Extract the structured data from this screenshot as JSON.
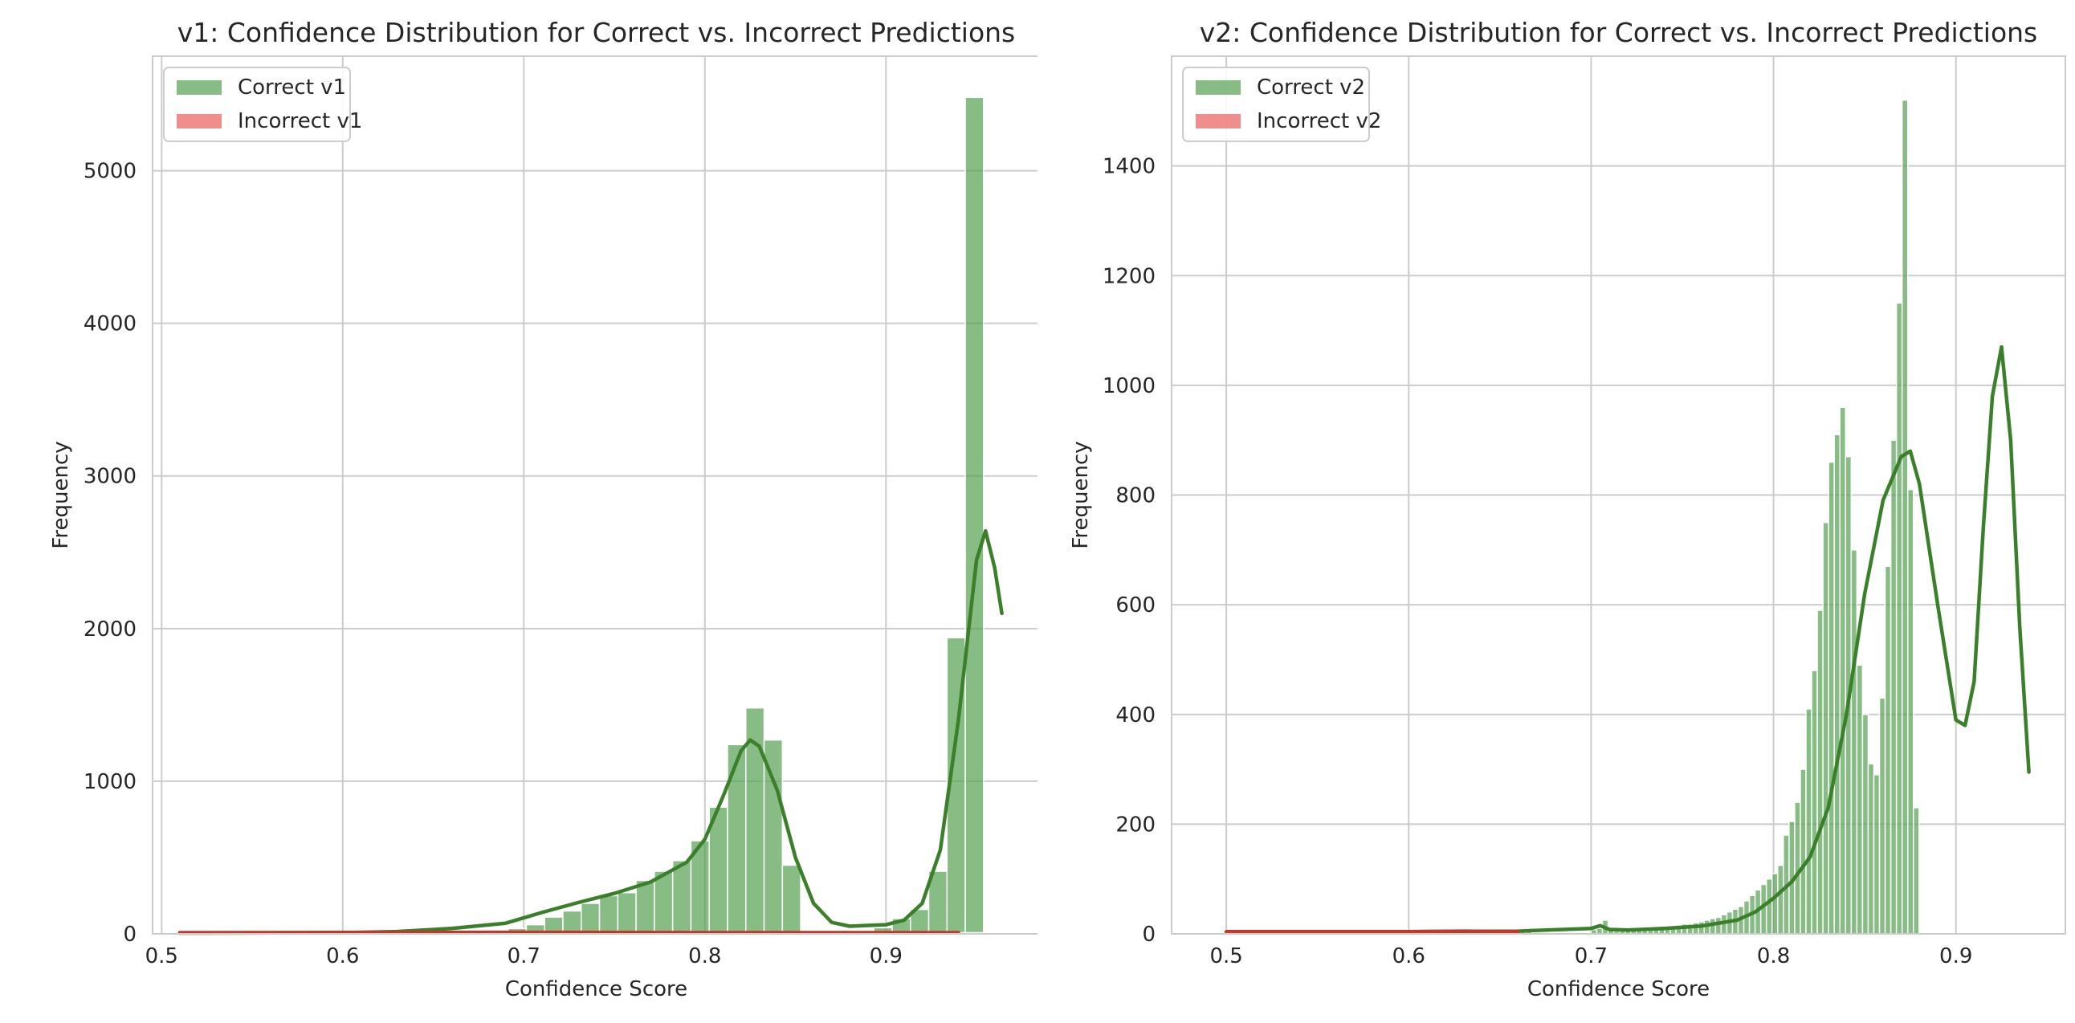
{
  "chart_data": [
    {
      "type": "histogram",
      "title": "v1: Confidence Distribution for Correct vs. Incorrect Predictions",
      "xlabel": "Confidence Score",
      "ylabel": "Frequency",
      "xlim": [
        0.495,
        0.985
      ],
      "ylim": [
        0,
        5750
      ],
      "xticks": [
        0.5,
        0.6,
        0.7,
        0.8,
        0.9
      ],
      "xtick_labels": [
        "0.5",
        "0.6",
        "0.7",
        "0.8",
        "0.9"
      ],
      "yticks": [
        0,
        1000,
        2000,
        3000,
        4000,
        5000
      ],
      "ytick_labels": [
        "0",
        "1000",
        "2000",
        "3000",
        "4000",
        "5000"
      ],
      "grid": true,
      "legend": "upper-left",
      "bin_width": 0.0101,
      "series": [
        {
          "name": "Correct v1",
          "color": "#55a051",
          "kde_color": "#3a7f2a",
          "bin_start": 0.5095,
          "counts": [
            5,
            2,
            2,
            3,
            3,
            4,
            2,
            3,
            5,
            6,
            5,
            6,
            8,
            8,
            10,
            12,
            18,
            25,
            35,
            60,
            110,
            150,
            200,
            250,
            270,
            350,
            410,
            480,
            610,
            830,
            1240,
            1480,
            1270,
            450,
            20,
            10,
            10,
            15,
            40,
            100,
            160,
            410,
            1940,
            5480
          ],
          "kde": [
            [
              0.51,
              5
            ],
            [
              0.55,
              6
            ],
            [
              0.6,
              8
            ],
            [
              0.63,
              15
            ],
            [
              0.66,
              35
            ],
            [
              0.69,
              70
            ],
            [
              0.71,
              140
            ],
            [
              0.73,
              205
            ],
            [
              0.75,
              265
            ],
            [
              0.77,
              340
            ],
            [
              0.79,
              470
            ],
            [
              0.8,
              620
            ],
            [
              0.81,
              900
            ],
            [
              0.82,
              1200
            ],
            [
              0.825,
              1270
            ],
            [
              0.83,
              1230
            ],
            [
              0.84,
              940
            ],
            [
              0.85,
              500
            ],
            [
              0.86,
              200
            ],
            [
              0.87,
              75
            ],
            [
              0.88,
              50
            ],
            [
              0.89,
              55
            ],
            [
              0.9,
              60
            ],
            [
              0.91,
              90
            ],
            [
              0.92,
              200
            ],
            [
              0.93,
              550
            ],
            [
              0.94,
              1400
            ],
            [
              0.95,
              2450
            ],
            [
              0.955,
              2640
            ],
            [
              0.96,
              2400
            ],
            [
              0.964,
              2100
            ]
          ]
        },
        {
          "name": "Incorrect v1",
          "color": "#e8605d",
          "kde_color": "#c0392b",
          "bin_start": 0.5095,
          "counts": [
            8,
            8,
            8,
            8,
            8,
            8,
            8,
            8,
            8,
            8,
            8,
            8,
            8,
            8,
            8,
            8,
            8,
            8,
            8,
            8,
            8,
            8,
            8,
            8,
            8,
            8,
            8,
            8,
            8,
            8,
            8,
            8,
            8,
            8,
            8,
            8,
            8,
            8,
            8,
            8,
            8,
            8,
            8,
            8
          ],
          "kde": [
            [
              0.51,
              8
            ],
            [
              0.6,
              9
            ],
            [
              0.7,
              10
            ],
            [
              0.8,
              8
            ],
            [
              0.9,
              8
            ],
            [
              0.94,
              8
            ]
          ]
        }
      ]
    },
    {
      "type": "histogram",
      "title": "v2: Confidence Distribution for Correct vs. Incorrect Predictions",
      "xlabel": "Confidence Score",
      "ylabel": "Frequency",
      "xlim": [
        0.47,
        0.96
      ],
      "ylim": [
        0,
        1600
      ],
      "xticks": [
        0.5,
        0.6,
        0.7,
        0.8,
        0.9
      ],
      "xtick_labels": [
        "0.5",
        "0.6",
        "0.7",
        "0.8",
        "0.9"
      ],
      "yticks": [
        0,
        200,
        400,
        600,
        800,
        1000,
        1200,
        1400
      ],
      "ytick_labels": [
        "0",
        "200",
        "400",
        "600",
        "800",
        "1000",
        "1200",
        "1400"
      ],
      "grid": true,
      "legend": "upper-left",
      "bin_width": 0.0031,
      "series": [
        {
          "name": "Correct v2",
          "color": "#55a051",
          "kde_color": "#3a7f2a",
          "bin_start": 0.7,
          "counts": [
            8,
            10,
            25,
            8,
            5,
            5,
            6,
            8,
            8,
            10,
            10,
            12,
            12,
            14,
            15,
            16,
            18,
            18,
            20,
            22,
            25,
            28,
            30,
            35,
            40,
            45,
            50,
            60,
            70,
            80,
            90,
            100,
            110,
            125,
            180,
            205,
            240,
            300,
            410,
            480,
            590,
            750,
            860,
            910,
            960,
            870,
            700,
            490,
            400,
            310,
            290,
            430,
            670,
            900,
            1150,
            1520,
            810,
            230
          ],
          "kde": [
            [
              0.5,
              3
            ],
            [
              0.6,
              4
            ],
            [
              0.66,
              5
            ],
            [
              0.7,
              10
            ],
            [
              0.705,
              15
            ],
            [
              0.71,
              8
            ],
            [
              0.72,
              7
            ],
            [
              0.74,
              10
            ],
            [
              0.76,
              14
            ],
            [
              0.78,
              25
            ],
            [
              0.79,
              40
            ],
            [
              0.8,
              65
            ],
            [
              0.81,
              95
            ],
            [
              0.82,
              140
            ],
            [
              0.83,
              230
            ],
            [
              0.84,
              400
            ],
            [
              0.85,
              620
            ],
            [
              0.86,
              790
            ],
            [
              0.87,
              870
            ],
            [
              0.875,
              880
            ],
            [
              0.88,
              820
            ],
            [
              0.89,
              600
            ],
            [
              0.9,
              390
            ],
            [
              0.905,
              380
            ],
            [
              0.91,
              460
            ],
            [
              0.915,
              740
            ],
            [
              0.92,
              980
            ],
            [
              0.925,
              1070
            ],
            [
              0.93,
              900
            ],
            [
              0.935,
              560
            ],
            [
              0.94,
              295
            ]
          ]
        },
        {
          "name": "Incorrect v2",
          "color": "#e8605d",
          "kde_color": "#c0392b",
          "bin_start": 0.5,
          "counts": [
            4,
            4,
            4,
            4,
            4,
            4,
            4,
            4,
            4,
            4,
            4,
            4,
            4,
            4,
            4,
            4,
            4,
            4,
            4,
            4,
            4,
            4,
            4,
            4,
            4,
            4,
            4,
            4,
            4,
            4,
            4,
            4,
            4,
            4,
            4,
            4,
            4,
            4,
            4,
            4,
            4,
            4,
            4,
            4,
            4,
            4,
            4,
            4,
            4,
            4,
            4,
            4,
            4,
            4
          ],
          "kde": [
            [
              0.5,
              4
            ],
            [
              0.55,
              4
            ],
            [
              0.6,
              4
            ],
            [
              0.63,
              5
            ],
            [
              0.66,
              4
            ]
          ]
        }
      ]
    }
  ]
}
